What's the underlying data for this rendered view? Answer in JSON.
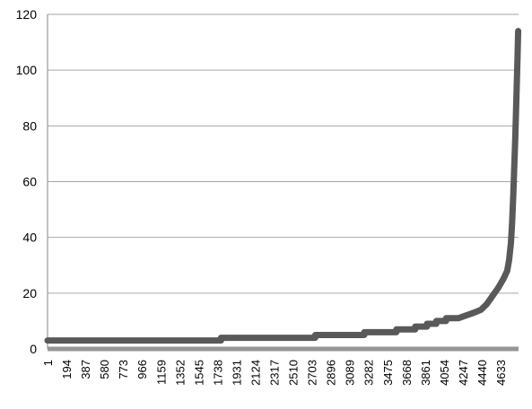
{
  "chart_data": {
    "type": "line",
    "title": "",
    "xlabel": "",
    "ylabel": "",
    "ylim": [
      0,
      120
    ],
    "yticks": [
      0,
      20,
      40,
      60,
      80,
      100,
      120
    ],
    "xlim": [
      1,
      4816
    ],
    "xtick_labels": [
      "1",
      "194",
      "387",
      "580",
      "773",
      "966",
      "1159",
      "1352",
      "1545",
      "1738",
      "1931",
      "2124",
      "2317",
      "2510",
      "2703",
      "2896",
      "3089",
      "3282",
      "3475",
      "3668",
      "3861",
      "4054",
      "4247",
      "4440",
      "4633"
    ],
    "grid": true,
    "legend": "none",
    "series": [
      {
        "color": "#595959",
        "points": [
          [
            1,
            3
          ],
          [
            1774,
            3
          ],
          [
            1774,
            4
          ],
          [
            2738,
            4
          ],
          [
            2738,
            5
          ],
          [
            3239,
            5
          ],
          [
            3239,
            6
          ],
          [
            3567,
            6
          ],
          [
            3567,
            7
          ],
          [
            3760,
            7
          ],
          [
            3760,
            8
          ],
          [
            3880,
            8
          ],
          [
            3880,
            9
          ],
          [
            3975,
            9
          ],
          [
            3975,
            10
          ],
          [
            4075,
            10
          ],
          [
            4075,
            11
          ],
          [
            4200,
            11
          ],
          [
            4280,
            12
          ],
          [
            4360,
            13
          ],
          [
            4430,
            14
          ],
          [
            4490,
            16
          ],
          [
            4550,
            19
          ],
          [
            4610,
            22
          ],
          [
            4660,
            25
          ],
          [
            4700,
            28
          ],
          [
            4720,
            32
          ],
          [
            4738,
            38
          ],
          [
            4750,
            45
          ],
          [
            4762,
            55
          ],
          [
            4772,
            65
          ],
          [
            4782,
            75
          ],
          [
            4790,
            85
          ],
          [
            4798,
            95
          ],
          [
            4806,
            105
          ],
          [
            4812,
            114
          ]
        ]
      }
    ]
  }
}
